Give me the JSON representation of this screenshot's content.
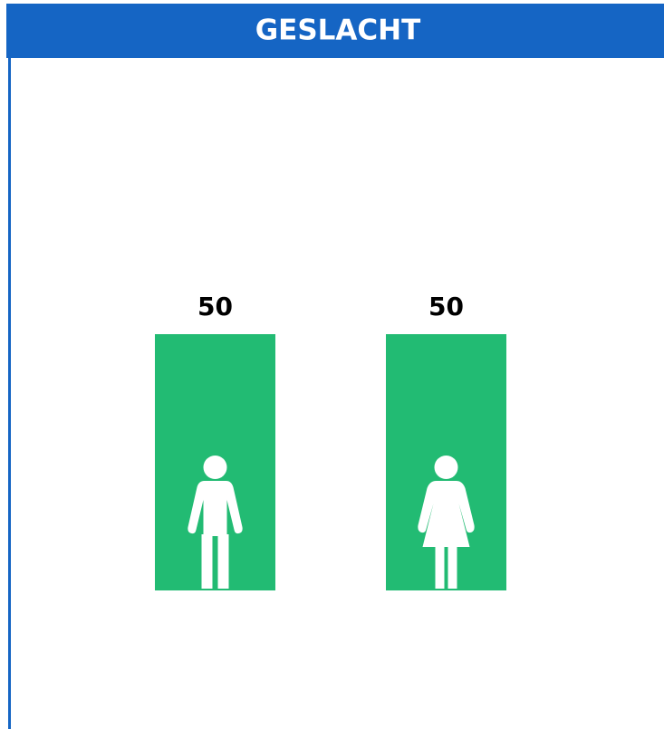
{
  "chart_data": {
    "type": "bar",
    "title": "GESLACHT",
    "categories": [
      null,
      null
    ],
    "values": [
      50,
      50
    ],
    "color": "#22bb73"
  }
}
